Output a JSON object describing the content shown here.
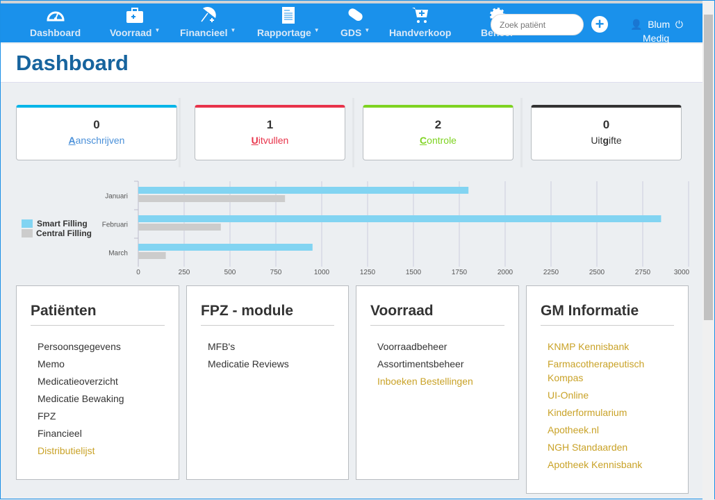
{
  "nav": {
    "items": [
      {
        "label": "Dashboard",
        "icon": "gauge-icon",
        "caret": false
      },
      {
        "label": "Voorraad",
        "icon": "medkit-icon",
        "caret": true
      },
      {
        "label": "Financieel",
        "icon": "umbrella-icon",
        "caret": true
      },
      {
        "label": "Rapportage",
        "icon": "report-icon",
        "caret": true
      },
      {
        "label": "GDS",
        "icon": "pills-icon",
        "caret": true
      },
      {
        "label": "Handverkoop",
        "icon": "cart-icon",
        "caret": false
      },
      {
        "label": "Beheer",
        "icon": "gear-icon",
        "caret": false
      }
    ],
    "search_placeholder": "Zoek patiënt",
    "user": "Blum",
    "org": "Mediq"
  },
  "header": {
    "title": "Dashboard"
  },
  "cards": [
    {
      "count": "0",
      "key": "A",
      "rest": "anschrijven",
      "pre": "",
      "color": "#00b5e8",
      "text": "#4a90d9"
    },
    {
      "count": "1",
      "key": "U",
      "rest": "itvullen",
      "pre": "",
      "color": "#e8334a",
      "text": "#e8334a"
    },
    {
      "count": "2",
      "key": "C",
      "rest": "ontrole",
      "pre": "",
      "color": "#7ed321",
      "text": "#7ed321"
    },
    {
      "count": "0",
      "pre": "Uit",
      "key": "g",
      "rest": "ifte",
      "color": "#333333",
      "text": "#333333"
    }
  ],
  "chart_data": {
    "type": "bar",
    "orientation": "horizontal",
    "categories": [
      "Januari",
      "Februari",
      "March"
    ],
    "series": [
      {
        "name": "Smart Filling",
        "color": "#82d4f2",
        "values": [
          1800,
          2850,
          950
        ]
      },
      {
        "name": "Central Filling",
        "color": "#cccccc",
        "values": [
          800,
          450,
          150
        ]
      }
    ],
    "xlim": [
      0,
      3000
    ],
    "xticks": [
      0,
      250,
      500,
      750,
      1000,
      1250,
      1500,
      1750,
      2000,
      2250,
      2500,
      2750,
      3000
    ],
    "grid": true,
    "legend": "left"
  },
  "panels": [
    {
      "title": "Patiënten",
      "links": [
        {
          "t": "Persoonsgegevens"
        },
        {
          "t": "Memo"
        },
        {
          "t": "Medicatieoverzicht"
        },
        {
          "t": "Medicatie Bewaking"
        },
        {
          "t": "FPZ"
        },
        {
          "t": "Financieel"
        },
        {
          "t": "Distributielijst",
          "y": true
        }
      ]
    },
    {
      "title": "FPZ - module",
      "links": [
        {
          "t": "MFB's"
        },
        {
          "t": "Medicatie Reviews"
        }
      ]
    },
    {
      "title": "Voorraad",
      "links": [
        {
          "t": "Voorraadbeheer"
        },
        {
          "t": "Assortimentsbeheer"
        },
        {
          "t": "Inboeken Bestellingen",
          "y": true
        }
      ]
    },
    {
      "title": "GM Informatie",
      "links": [
        {
          "t": "KNMP Kennisbank",
          "y": true
        },
        {
          "t": "Farmacotherapeutisch Kompas",
          "y": true
        },
        {
          "t": "UI-Online",
          "y": true
        },
        {
          "t": "Kinderformularium",
          "y": true
        },
        {
          "t": "Apotheek.nl",
          "y": true
        },
        {
          "t": "NGH Standaarden",
          "y": true
        },
        {
          "t": "Apotheek Kennisbank",
          "y": true
        }
      ]
    }
  ]
}
